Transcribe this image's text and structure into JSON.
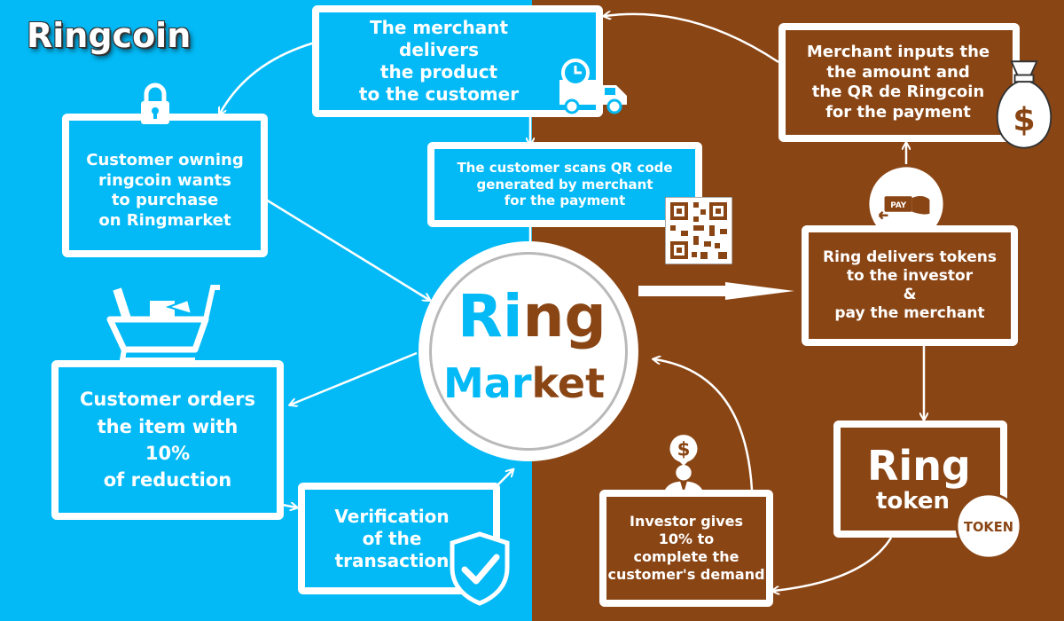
{
  "title": "Ringcoin",
  "colors": {
    "left": "#03baf6",
    "right": "#8a4514",
    "white": "#ffffff"
  },
  "hub": {
    "ring_a": "Ri",
    "ring_b": "ng",
    "market_a": "Mar",
    "market_b": "ket"
  },
  "boxes": {
    "merchant_delivers": "The merchant delivers\nthe product\nto the customer",
    "customer_owning": "Customer owning\nringcoin wants\nto purchase\non Ringmarket",
    "customer_scans": "The customer scans QR code\ngenerated by merchant\nfor the payment",
    "merchant_inputs": "Merchant inputs the\nthe amount and\nthe QR de Ringcoin\nfor the payment",
    "ring_delivers": "Ring delivers tokens\nto the investor\n&\npay the merchant",
    "customer_orders": "Customer orders\nthe item with\n10%\nof reduction",
    "verification": "Verification\nof the\ntransaction",
    "investor_gives": "Investor gives\n10% to\ncomplete the\ncustomer's demand",
    "ring_token_a": "Ring",
    "ring_token_b": "token"
  },
  "icons": {
    "token_badge": "TOKEN",
    "pay_label": "PAY",
    "dollar": "$",
    "names": [
      "padlock-icon",
      "delivery-truck-icon",
      "qr-code-icon",
      "money-bag-icon",
      "pay-card-icon",
      "shopping-cart-icon",
      "shield-check-icon",
      "investor-icon",
      "token-coin-icon"
    ]
  }
}
